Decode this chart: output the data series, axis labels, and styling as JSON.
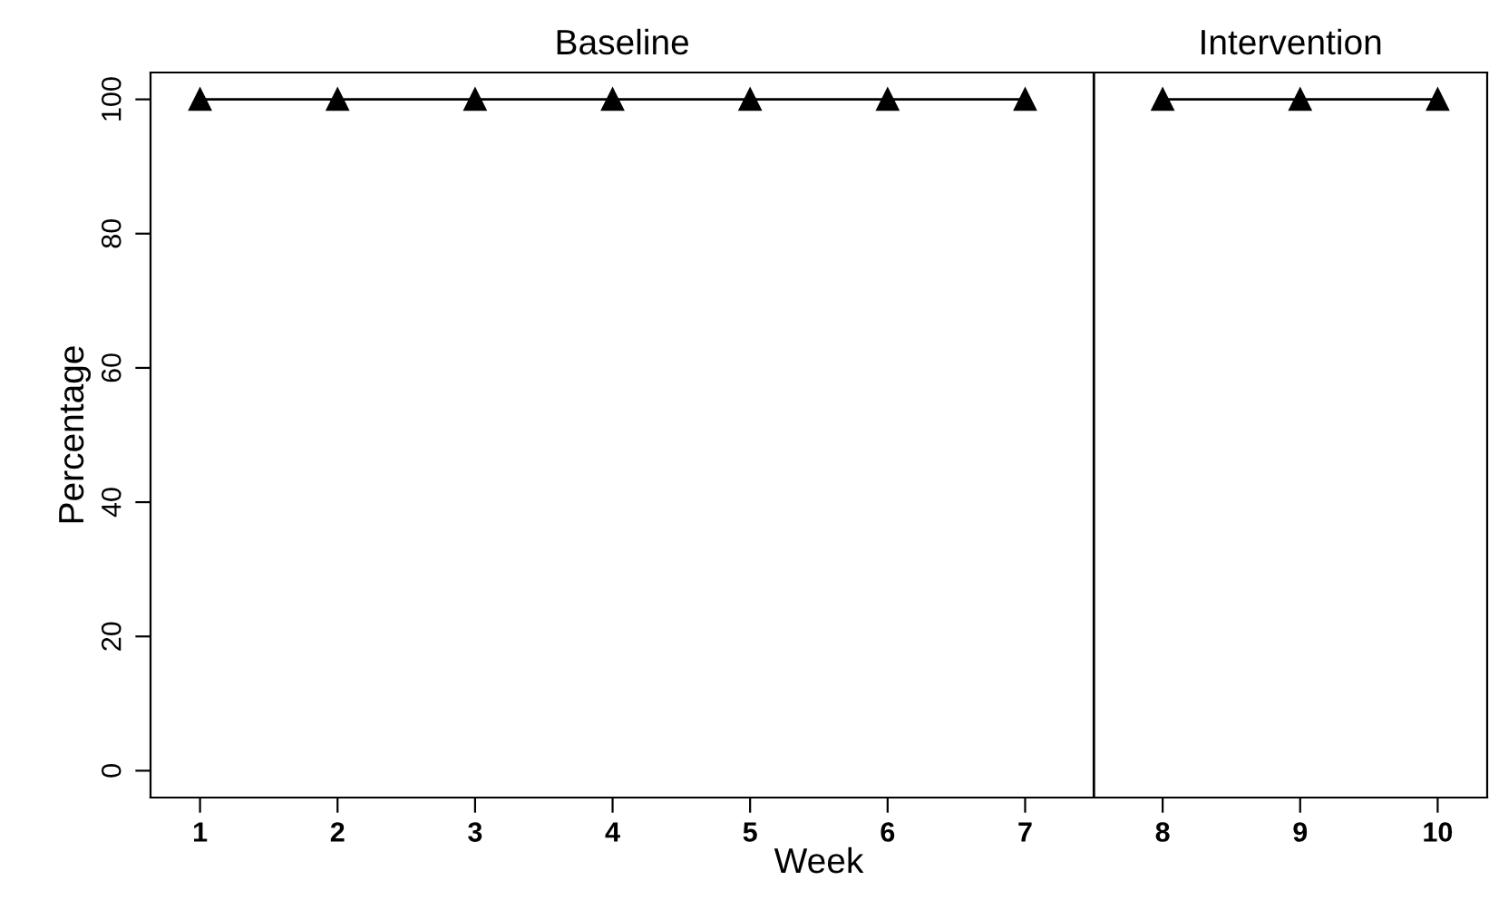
{
  "chart_data": {
    "type": "line",
    "xlabel": "Week",
    "ylabel": "Percentage",
    "annotations": [
      "Baseline",
      "Intervention"
    ],
    "series": [
      {
        "color": "#000000",
        "x": [
          1,
          2,
          3,
          4,
          5,
          6,
          7
        ],
        "values": [
          100,
          100,
          100,
          100,
          100,
          100,
          100
        ]
      },
      {
        "color": "#000000",
        "x": [
          8,
          9,
          10
        ],
        "values": [
          100,
          100,
          100
        ]
      }
    ],
    "xlim": [
      0.64,
      10.36
    ],
    "xticks": [
      1,
      2,
      3,
      4,
      5,
      6,
      7,
      8,
      9,
      10
    ],
    "ylim": [
      -4,
      104
    ],
    "yticks": [
      0,
      20,
      40,
      60,
      80,
      100
    ],
    "ref_lines": [
      {
        "axis": "x",
        "value": 7.5,
        "color": "#000000"
      }
    ],
    "grid": false,
    "legend": false,
    "marker": "triangle",
    "line_style": "solid"
  }
}
